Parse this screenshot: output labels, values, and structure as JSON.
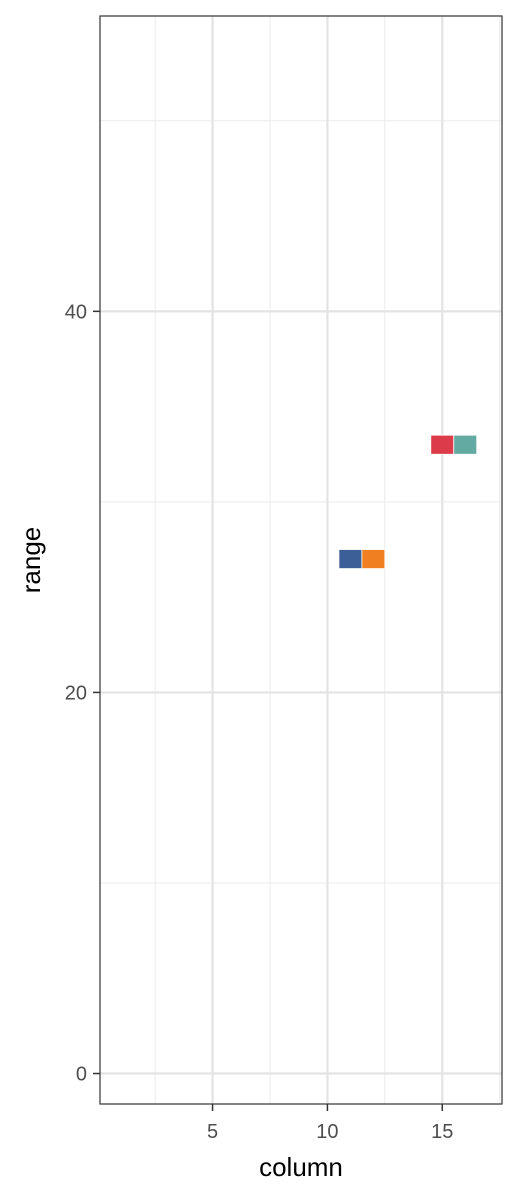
{
  "chart_data": {
    "type": "heatmap",
    "xlabel": "column",
    "ylabel": "range",
    "xlim": [
      0.1,
      17.6
    ],
    "ylim": [
      -1.6,
      55.5
    ],
    "x_ticks": [
      5,
      10,
      15
    ],
    "y_ticks": [
      0,
      20,
      40
    ],
    "x_minor": [
      2.5,
      7.5,
      12.5,
      17.5
    ],
    "y_minor": [
      10,
      30,
      50
    ],
    "grid": true,
    "tiles": [
      {
        "x": 11,
        "y": 27,
        "color": "#3b5f96"
      },
      {
        "x": 12,
        "y": 27,
        "color": "#f07f22"
      },
      {
        "x": 15,
        "y": 33,
        "color": "#dc3c49"
      },
      {
        "x": 16,
        "y": 33,
        "color": "#63aaa2"
      }
    ]
  }
}
